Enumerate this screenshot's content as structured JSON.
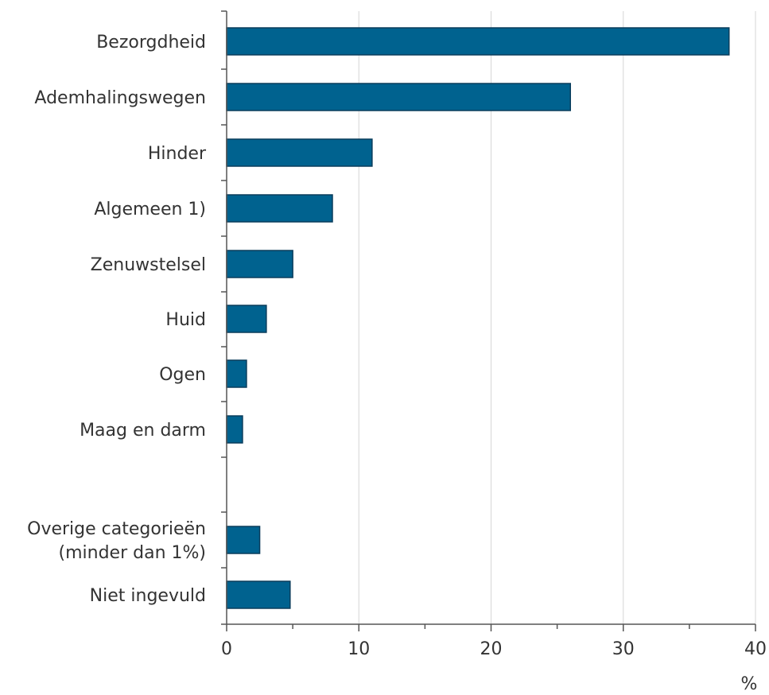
{
  "chart_data": {
    "type": "bar",
    "orientation": "horizontal",
    "categories": [
      "Bezorgdheid",
      "Ademhalingswegen",
      "Hinder",
      "Algemeen 1)",
      "Zenuwstelsel",
      "Huid",
      "Ogen",
      "Maag en darm",
      "Overige categorieën (minder dan 1%)",
      "Niet ingevuld"
    ],
    "category_lines": [
      [
        "Bezorgdheid"
      ],
      [
        "Ademhalingswegen"
      ],
      [
        "Hinder"
      ],
      [
        "Algemeen 1)"
      ],
      [
        "Zenuwstelsel"
      ],
      [
        "Huid"
      ],
      [
        "Ogen"
      ],
      [
        "Maag en darm"
      ],
      [
        "Overige categorieën",
        "(minder dan 1%)"
      ],
      [
        "Niet ingevuld"
      ]
    ],
    "values": [
      38,
      26,
      11,
      8,
      5,
      3,
      1.5,
      1.2,
      2.5,
      4.8
    ],
    "xlim": [
      0,
      40
    ],
    "xticks": [
      0,
      10,
      20,
      30,
      40
    ],
    "xlabel": "%",
    "ylabel": "",
    "title": "",
    "grid": true,
    "legend": "none",
    "colors": {
      "bar": "#00628f",
      "bar_edge": "#0a3d5c",
      "grid": "#d6d6d6",
      "axis": "#555555",
      "text": "#333333"
    }
  }
}
